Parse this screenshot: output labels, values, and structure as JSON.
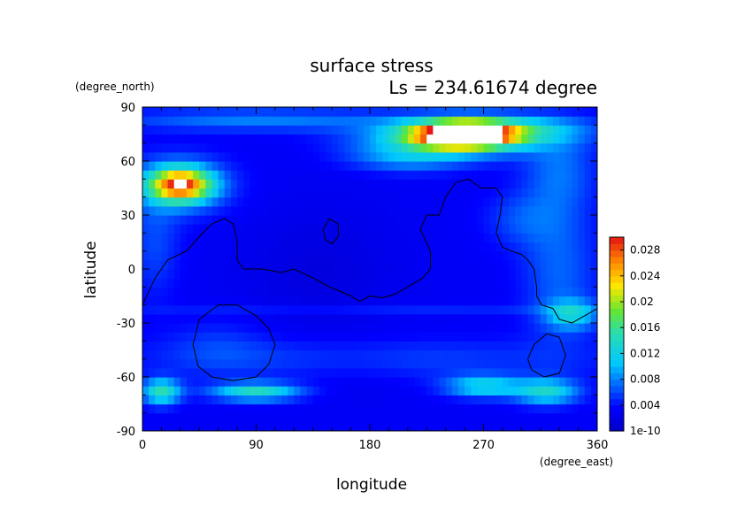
{
  "chart_data": {
    "type": "heatmap",
    "title": "surface stress",
    "subtitle": "Ls = 234.61674 degree",
    "xlabel": "longitude",
    "ylabel": "latitude",
    "x_units": "(degree_east)",
    "y_units": "(degree_north)",
    "xlim": [
      0,
      360
    ],
    "ylim": [
      -90,
      90
    ],
    "x_ticks": [
      0,
      90,
      180,
      270,
      360
    ],
    "y_ticks": [
      -90,
      -60,
      -30,
      0,
      30,
      60,
      90
    ],
    "colorbar": {
      "ticks": [
        "1e-10",
        "0.004",
        "0.008",
        "0.012",
        "0.016",
        "0.02",
        "0.024",
        "0.028"
      ],
      "tick_values": [
        0,
        0.004,
        0.008,
        0.012,
        0.016,
        0.02,
        0.024,
        0.028
      ],
      "range": [
        0,
        0.03
      ],
      "colormap": "jet",
      "saturation_color": "#ffffff"
    },
    "background_level": 0.003,
    "features": [
      {
        "lon": 255,
        "lat": 75,
        "rx": 40,
        "ry": 7,
        "value": 0.032
      },
      {
        "lon": 240,
        "lat": 73,
        "rx": 70,
        "ry": 11,
        "value": 0.009
      },
      {
        "lon": 300,
        "lat": 78,
        "rx": 60,
        "ry": 8,
        "value": 0.006
      },
      {
        "lon": 30,
        "lat": 47,
        "rx": 24,
        "ry": 9,
        "value": 0.022
      },
      {
        "lon": 30,
        "lat": 47,
        "rx": 40,
        "ry": 16,
        "value": 0.006
      },
      {
        "lon": 90,
        "lat": 83,
        "rx": 110,
        "ry": 6,
        "value": 0.005
      },
      {
        "lon": 210,
        "lat": 62,
        "rx": 45,
        "ry": 8,
        "value": 0.005
      },
      {
        "lon": 330,
        "lat": 55,
        "rx": 28,
        "ry": 22,
        "value": 0.004
      },
      {
        "lon": 10,
        "lat": 15,
        "rx": 20,
        "ry": 30,
        "value": 0.003
      },
      {
        "lon": 330,
        "lat": 0,
        "rx": 30,
        "ry": 40,
        "value": 0.004
      },
      {
        "lon": 300,
        "lat": 28,
        "rx": 30,
        "ry": 15,
        "value": 0.003
      },
      {
        "lon": 340,
        "lat": -25,
        "rx": 20,
        "ry": 8,
        "value": 0.008
      },
      {
        "lon": 180,
        "lat": -22,
        "rx": 180,
        "ry": 3,
        "value": 0.002
      },
      {
        "lon": 15,
        "lat": -68,
        "rx": 15,
        "ry": 7,
        "value": 0.012
      },
      {
        "lon": 90,
        "lat": -68,
        "rx": 35,
        "ry": 5,
        "value": 0.011
      },
      {
        "lon": 270,
        "lat": -65,
        "rx": 30,
        "ry": 6,
        "value": 0.009
      },
      {
        "lon": 320,
        "lat": -68,
        "rx": 25,
        "ry": 7,
        "value": 0.01
      },
      {
        "lon": 180,
        "lat": -50,
        "rx": 180,
        "ry": 12,
        "value": 0.003
      },
      {
        "lon": 60,
        "lat": -42,
        "rx": 40,
        "ry": 15,
        "value": 0.002
      },
      {
        "lon": 140,
        "lat": 0,
        "rx": 60,
        "ry": 35,
        "value": -0.0015
      },
      {
        "lon": 170,
        "lat": -55,
        "rx": 50,
        "ry": 15,
        "value": -0.001
      }
    ],
    "contours": [
      {
        "name": "continent-outline",
        "points": [
          [
            0,
            -20
          ],
          [
            10,
            -5
          ],
          [
            20,
            5
          ],
          [
            35,
            10
          ],
          [
            45,
            18
          ],
          [
            55,
            25
          ],
          [
            65,
            28
          ],
          [
            72,
            25
          ],
          [
            75,
            15
          ],
          [
            75,
            5
          ],
          [
            80,
            0
          ],
          [
            95,
            0
          ],
          [
            110,
            -2
          ],
          [
            120,
            0
          ],
          [
            135,
            -5
          ],
          [
            148,
            -10
          ],
          [
            155,
            -12
          ],
          [
            165,
            -15
          ],
          [
            172,
            -18
          ],
          [
            180,
            -15
          ],
          [
            190,
            -16
          ],
          [
            200,
            -14
          ],
          [
            210,
            -10
          ],
          [
            222,
            -5
          ],
          [
            228,
            0
          ],
          [
            228,
            10
          ],
          [
            220,
            22
          ],
          [
            225,
            30
          ],
          [
            235,
            30
          ],
          [
            240,
            40
          ],
          [
            248,
            48
          ],
          [
            258,
            50
          ],
          [
            268,
            45
          ],
          [
            280,
            45
          ],
          [
            285,
            40
          ],
          [
            283,
            30
          ],
          [
            280,
            20
          ],
          [
            285,
            12
          ],
          [
            292,
            10
          ],
          [
            300,
            8
          ],
          [
            305,
            5
          ],
          [
            310,
            0
          ],
          [
            312,
            -10
          ],
          [
            312,
            -15
          ],
          [
            316,
            -20
          ],
          [
            325,
            -22
          ],
          [
            330,
            -28
          ],
          [
            340,
            -30
          ],
          [
            350,
            -26
          ],
          [
            360,
            -22
          ]
        ]
      },
      {
        "name": "island-outline",
        "points": [
          [
            143,
            22
          ],
          [
            148,
            28
          ],
          [
            155,
            25
          ],
          [
            155,
            18
          ],
          [
            150,
            14
          ],
          [
            145,
            16
          ],
          [
            143,
            22
          ]
        ]
      },
      {
        "name": "basin-outline-west",
        "points": [
          [
            40,
            -42
          ],
          [
            45,
            -28
          ],
          [
            60,
            -20
          ],
          [
            75,
            -20
          ],
          [
            90,
            -26
          ],
          [
            100,
            -33
          ],
          [
            105,
            -42
          ],
          [
            100,
            -53
          ],
          [
            90,
            -60
          ],
          [
            72,
            -62
          ],
          [
            55,
            -60
          ],
          [
            44,
            -54
          ],
          [
            40,
            -42
          ]
        ]
      },
      {
        "name": "basin-outline-east",
        "points": [
          [
            305,
            -50
          ],
          [
            310,
            -42
          ],
          [
            320,
            -36
          ],
          [
            330,
            -38
          ],
          [
            335,
            -48
          ],
          [
            330,
            -58
          ],
          [
            318,
            -60
          ],
          [
            308,
            -56
          ],
          [
            305,
            -50
          ]
        ]
      }
    ]
  }
}
